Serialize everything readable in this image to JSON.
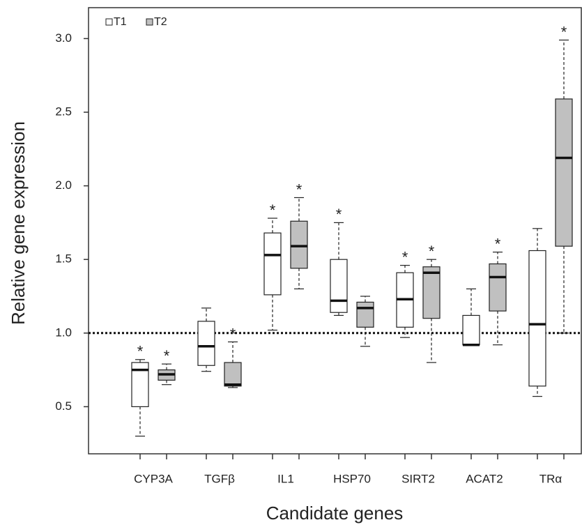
{
  "chart_data": {
    "type": "box",
    "x_label": "Candidate genes",
    "y_label": "Relative gene expression",
    "categories": [
      "CYP3A",
      "TGFβ",
      "IL1",
      "HSP70",
      "SIRT2",
      "ACAT2",
      "TRα"
    ],
    "series": [
      {
        "name": "T1",
        "color": "#ffffff",
        "min": [
          0.3,
          0.74,
          1.02,
          1.12,
          0.97,
          0.92,
          0.57
        ],
        "q1": [
          0.5,
          0.78,
          1.26,
          1.14,
          1.04,
          0.92,
          0.64
        ],
        "median": [
          0.75,
          0.91,
          1.53,
          1.22,
          1.23,
          0.92,
          1.06
        ],
        "q3": [
          0.8,
          1.08,
          1.68,
          1.5,
          1.41,
          1.12,
          1.56
        ],
        "max": [
          0.82,
          1.17,
          1.78,
          1.75,
          1.46,
          1.3,
          1.71
        ],
        "stars": [
          "*",
          null,
          "*",
          "*",
          "*",
          null,
          null
        ]
      },
      {
        "name": "T2",
        "color": "#c0c0c0",
        "min": [
          0.65,
          0.63,
          1.3,
          0.91,
          0.8,
          0.92,
          1.0
        ],
        "q1": [
          0.68,
          0.64,
          1.44,
          1.04,
          1.1,
          1.15,
          1.59
        ],
        "median": [
          0.72,
          0.65,
          1.59,
          1.17,
          1.41,
          1.38,
          2.19
        ],
        "q3": [
          0.75,
          0.8,
          1.76,
          1.21,
          1.45,
          1.47,
          2.59
        ],
        "max": [
          0.79,
          0.94,
          1.92,
          1.25,
          1.5,
          1.55,
          2.99
        ],
        "stars": [
          "*",
          "*",
          "*",
          null,
          "*",
          "*",
          "*"
        ]
      }
    ],
    "reference_line": 1.0,
    "ylim": [
      0.18,
      3.21
    ],
    "yticks": [
      0.5,
      {
        "value": 1.0,
        "label": "1.0"
      },
      1.5,
      {
        "value": 2.0,
        "label": "2.0"
      },
      2.5,
      {
        "value": 3.0,
        "label": "3.0"
      }
    ],
    "grid": false,
    "legend": "top-left"
  }
}
